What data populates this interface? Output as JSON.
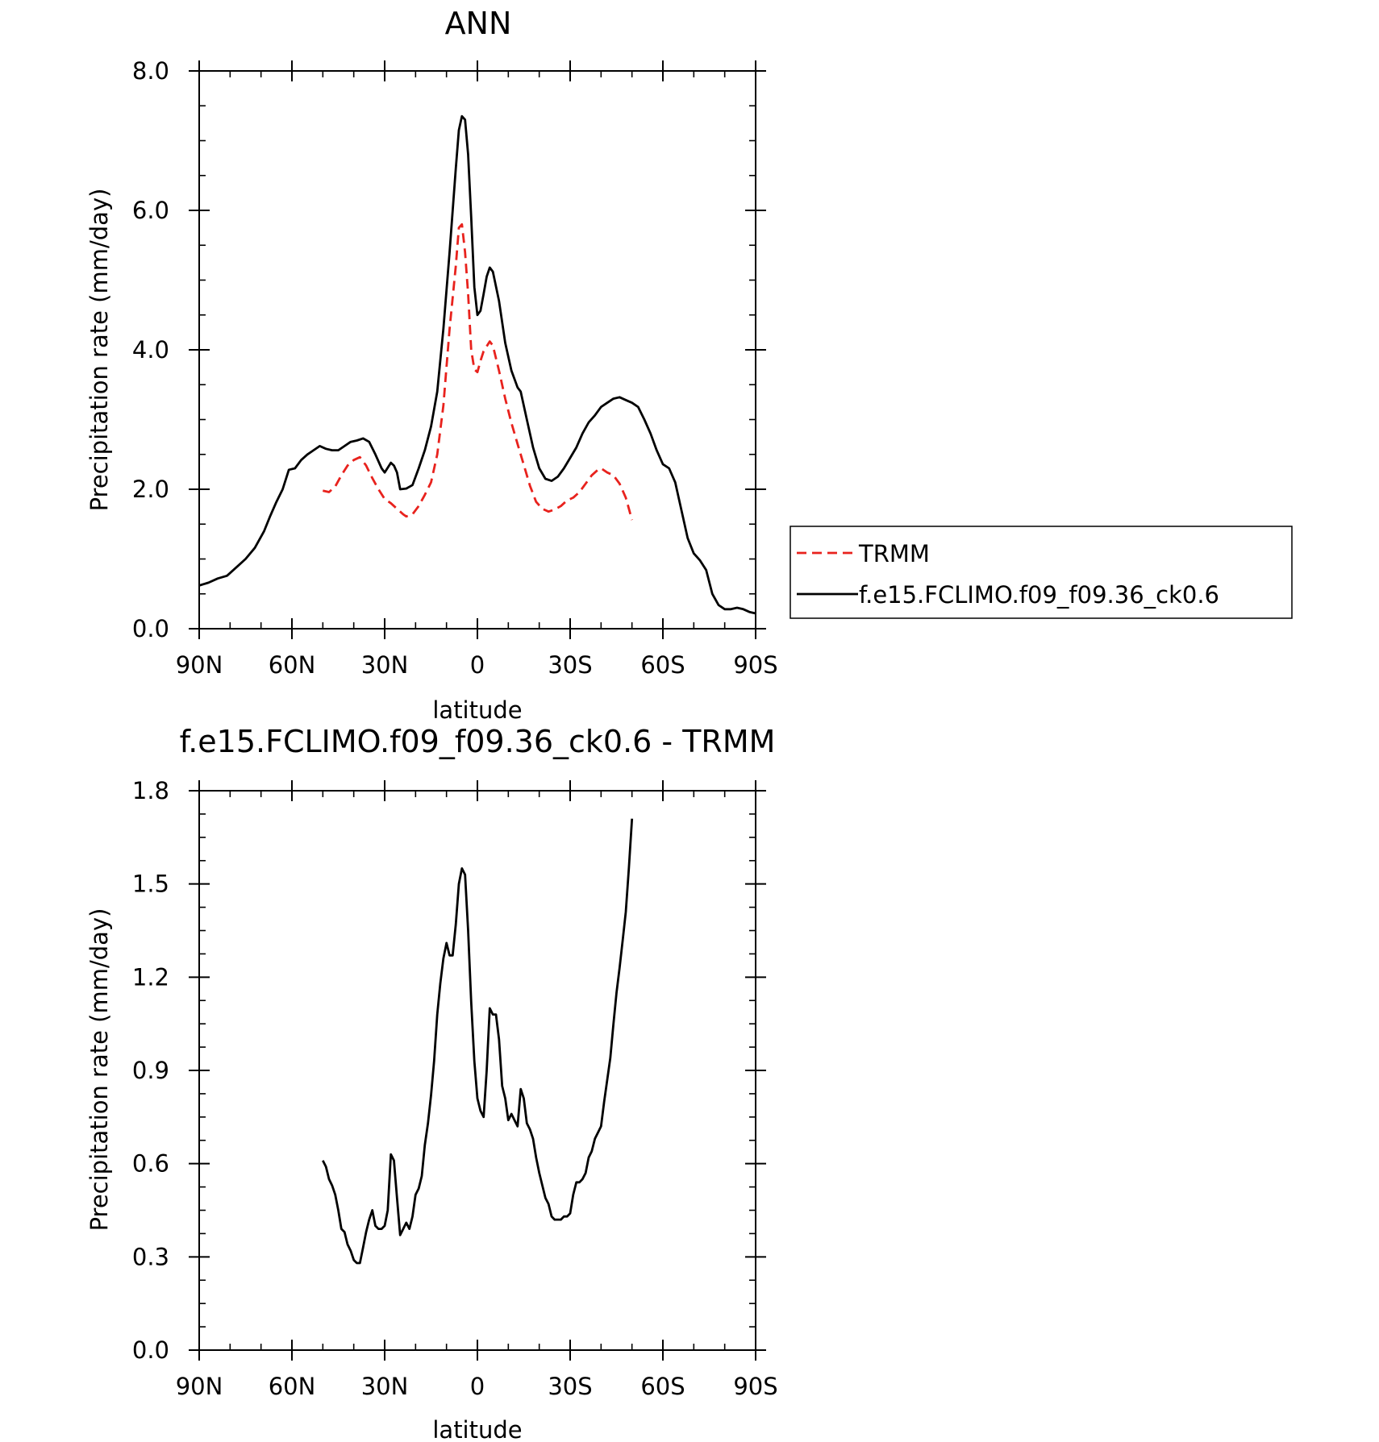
{
  "chart_data": [
    {
      "type": "line",
      "title": "ANN",
      "xlabel": "latitude",
      "ylabel": "Precipitation rate (mm/day)",
      "xlim": [
        90,
        -90
      ],
      "ylim": [
        0,
        8
      ],
      "x_ticks": [
        90,
        60,
        30,
        0,
        -30,
        -60,
        -90
      ],
      "x_tick_labels": [
        "90N",
        "60N",
        "30N",
        "0",
        "30S",
        "60S",
        "90S"
      ],
      "y_ticks": [
        0,
        2,
        4,
        6,
        8
      ],
      "y_tick_labels": [
        "0.0",
        "2.0",
        "4.0",
        "6.0",
        "8.0"
      ],
      "legend_position": "right",
      "series": [
        {
          "name": "TRMM",
          "color": "#e8221d",
          "dash": "dashed",
          "points": [
            [
              50,
              1.98
            ],
            [
              48,
              1.96
            ],
            [
              46,
              2.04
            ],
            [
              44,
              2.2
            ],
            [
              42,
              2.34
            ],
            [
              40,
              2.42
            ],
            [
              38,
              2.46
            ],
            [
              36,
              2.34
            ],
            [
              34,
              2.16
            ],
            [
              32,
              2.0
            ],
            [
              30,
              1.86
            ],
            [
              28,
              1.8
            ],
            [
              26,
              1.72
            ],
            [
              24,
              1.64
            ],
            [
              23,
              1.61
            ],
            [
              21,
              1.64
            ],
            [
              19,
              1.76
            ],
            [
              17,
              1.92
            ],
            [
              15,
              2.1
            ],
            [
              13,
              2.5
            ],
            [
              11,
              3.2
            ],
            [
              9,
              4.3
            ],
            [
              7,
              5.2
            ],
            [
              6,
              5.75
            ],
            [
              5,
              5.8
            ],
            [
              4,
              5.4
            ],
            [
              3,
              4.8
            ],
            [
              2,
              4.0
            ],
            [
              1,
              3.72
            ],
            [
              0,
              3.68
            ],
            [
              -1,
              3.84
            ],
            [
              -2,
              3.98
            ],
            [
              -3,
              4.05
            ],
            [
              -4,
              4.12
            ],
            [
              -5,
              4.06
            ],
            [
              -7,
              3.7
            ],
            [
              -9,
              3.3
            ],
            [
              -11,
              2.95
            ],
            [
              -13,
              2.65
            ],
            [
              -15,
              2.35
            ],
            [
              -17,
              2.05
            ],
            [
              -19,
              1.82
            ],
            [
              -21,
              1.72
            ],
            [
              -23,
              1.68
            ],
            [
              -25,
              1.71
            ],
            [
              -27,
              1.76
            ],
            [
              -29,
              1.84
            ],
            [
              -31,
              1.88
            ],
            [
              -33,
              1.96
            ],
            [
              -35,
              2.08
            ],
            [
              -37,
              2.2
            ],
            [
              -39,
              2.28
            ],
            [
              -40,
              2.3
            ],
            [
              -42,
              2.24
            ],
            [
              -44,
              2.2
            ],
            [
              -46,
              2.08
            ],
            [
              -48,
              1.88
            ],
            [
              -50,
              1.56
            ]
          ]
        },
        {
          "name": "f.e15.FCLIMO.f09_f09.36_ck0.6",
          "color": "#000000",
          "dash": "solid",
          "points": [
            [
              90,
              0.62
            ],
            [
              87,
              0.66
            ],
            [
              84,
              0.72
            ],
            [
              81,
              0.76
            ],
            [
              78,
              0.88
            ],
            [
              75,
              1.0
            ],
            [
              72,
              1.16
            ],
            [
              69,
              1.4
            ],
            [
              67,
              1.62
            ],
            [
              65,
              1.82
            ],
            [
              63,
              2.0
            ],
            [
              61,
              2.28
            ],
            [
              59,
              2.3
            ],
            [
              57,
              2.42
            ],
            [
              55,
              2.5
            ],
            [
              53,
              2.56
            ],
            [
              51,
              2.62
            ],
            [
              49,
              2.58
            ],
            [
              47,
              2.56
            ],
            [
              45,
              2.56
            ],
            [
              43,
              2.62
            ],
            [
              41,
              2.68
            ],
            [
              39,
              2.7
            ],
            [
              37,
              2.73
            ],
            [
              35,
              2.68
            ],
            [
              33,
              2.5
            ],
            [
              31,
              2.3
            ],
            [
              30,
              2.24
            ],
            [
              28,
              2.38
            ],
            [
              27,
              2.34
            ],
            [
              26,
              2.24
            ],
            [
              25,
              2.0
            ],
            [
              23,
              2.01
            ],
            [
              21,
              2.06
            ],
            [
              19,
              2.3
            ],
            [
              17,
              2.56
            ],
            [
              15,
              2.9
            ],
            [
              13,
              3.4
            ],
            [
              11,
              4.3
            ],
            [
              9,
              5.4
            ],
            [
              7,
              6.6
            ],
            [
              6,
              7.15
            ],
            [
              5,
              7.35
            ],
            [
              4,
              7.3
            ],
            [
              3,
              6.8
            ],
            [
              2,
              5.9
            ],
            [
              1,
              4.9
            ],
            [
              0,
              4.5
            ],
            [
              -1,
              4.56
            ],
            [
              -2,
              4.8
            ],
            [
              -3,
              5.05
            ],
            [
              -4,
              5.18
            ],
            [
              -5,
              5.12
            ],
            [
              -7,
              4.7
            ],
            [
              -9,
              4.1
            ],
            [
              -11,
              3.7
            ],
            [
              -13,
              3.46
            ],
            [
              -14,
              3.4
            ],
            [
              -16,
              3.0
            ],
            [
              -18,
              2.6
            ],
            [
              -20,
              2.3
            ],
            [
              -22,
              2.15
            ],
            [
              -24,
              2.12
            ],
            [
              -26,
              2.18
            ],
            [
              -28,
              2.3
            ],
            [
              -30,
              2.45
            ],
            [
              -32,
              2.6
            ],
            [
              -34,
              2.8
            ],
            [
              -36,
              2.96
            ],
            [
              -38,
              3.06
            ],
            [
              -40,
              3.18
            ],
            [
              -42,
              3.24
            ],
            [
              -44,
              3.3
            ],
            [
              -46,
              3.32
            ],
            [
              -48,
              3.28
            ],
            [
              -50,
              3.24
            ],
            [
              -52,
              3.18
            ],
            [
              -54,
              3.0
            ],
            [
              -56,
              2.8
            ],
            [
              -58,
              2.56
            ],
            [
              -60,
              2.36
            ],
            [
              -62,
              2.3
            ],
            [
              -64,
              2.1
            ],
            [
              -66,
              1.7
            ],
            [
              -68,
              1.3
            ],
            [
              -70,
              1.08
            ],
            [
              -72,
              0.98
            ],
            [
              -74,
              0.84
            ],
            [
              -76,
              0.5
            ],
            [
              -78,
              0.34
            ],
            [
              -80,
              0.28
            ],
            [
              -82,
              0.28
            ],
            [
              -84,
              0.3
            ],
            [
              -86,
              0.28
            ],
            [
              -88,
              0.24
            ],
            [
              -90,
              0.22
            ]
          ]
        }
      ]
    },
    {
      "type": "line",
      "title": "f.e15.FCLIMO.f09_f09.36_ck0.6 - TRMM",
      "xlabel": "latitude",
      "ylabel": "Precipitation rate (mm/day)",
      "xlim": [
        90,
        -90
      ],
      "ylim": [
        0,
        1.8
      ],
      "x_ticks": [
        90,
        60,
        30,
        0,
        -30,
        -60,
        -90
      ],
      "x_tick_labels": [
        "90N",
        "60N",
        "30N",
        "0",
        "30S",
        "60S",
        "90S"
      ],
      "y_ticks": [
        0,
        0.3,
        0.6,
        0.9,
        1.2,
        1.5,
        1.8
      ],
      "y_tick_labels": [
        "0.0",
        "0.3",
        "0.6",
        "0.9",
        "1.2",
        "1.5",
        "1.8"
      ],
      "series": [
        {
          "color": "#000000",
          "dash": "solid",
          "points": [
            [
              50,
              0.61
            ],
            [
              49,
              0.59
            ],
            [
              48,
              0.55
            ],
            [
              47,
              0.53
            ],
            [
              46,
              0.5
            ],
            [
              45,
              0.45
            ],
            [
              44,
              0.39
            ],
            [
              43,
              0.38
            ],
            [
              42,
              0.34
            ],
            [
              41,
              0.32
            ],
            [
              40,
              0.29
            ],
            [
              39,
              0.28
            ],
            [
              38,
              0.28
            ],
            [
              37,
              0.33
            ],
            [
              36,
              0.38
            ],
            [
              35,
              0.42
            ],
            [
              34,
              0.45
            ],
            [
              33,
              0.4
            ],
            [
              32,
              0.39
            ],
            [
              31,
              0.39
            ],
            [
              30,
              0.4
            ],
            [
              29,
              0.45
            ],
            [
              28,
              0.63
            ],
            [
              27,
              0.61
            ],
            [
              26,
              0.49
            ],
            [
              25,
              0.37
            ],
            [
              24,
              0.39
            ],
            [
              23,
              0.41
            ],
            [
              22,
              0.39
            ],
            [
              21,
              0.43
            ],
            [
              20,
              0.5
            ],
            [
              19,
              0.52
            ],
            [
              18,
              0.56
            ],
            [
              17,
              0.66
            ],
            [
              16,
              0.73
            ],
            [
              15,
              0.82
            ],
            [
              14,
              0.93
            ],
            [
              13,
              1.08
            ],
            [
              12,
              1.18
            ],
            [
              11,
              1.26
            ],
            [
              10,
              1.31
            ],
            [
              9,
              1.27
            ],
            [
              8,
              1.27
            ],
            [
              7,
              1.37
            ],
            [
              6,
              1.5
            ],
            [
              5,
              1.55
            ],
            [
              4,
              1.53
            ],
            [
              3,
              1.35
            ],
            [
              2,
              1.12
            ],
            [
              1,
              0.93
            ],
            [
              0,
              0.81
            ],
            [
              -1,
              0.77
            ],
            [
              -2,
              0.75
            ],
            [
              -3,
              0.9
            ],
            [
              -4,
              1.1
            ],
            [
              -5,
              1.08
            ],
            [
              -6,
              1.08
            ],
            [
              -7,
              1.0
            ],
            [
              -8,
              0.85
            ],
            [
              -9,
              0.81
            ],
            [
              -10,
              0.74
            ],
            [
              -11,
              0.76
            ],
            [
              -12,
              0.74
            ],
            [
              -13,
              0.72
            ],
            [
              -14,
              0.84
            ],
            [
              -15,
              0.81
            ],
            [
              -16,
              0.73
            ],
            [
              -17,
              0.71
            ],
            [
              -18,
              0.68
            ],
            [
              -19,
              0.62
            ],
            [
              -20,
              0.57
            ],
            [
              -21,
              0.53
            ],
            [
              -22,
              0.49
            ],
            [
              -23,
              0.47
            ],
            [
              -24,
              0.43
            ],
            [
              -25,
              0.42
            ],
            [
              -26,
              0.42
            ],
            [
              -27,
              0.42
            ],
            [
              -28,
              0.43
            ],
            [
              -29,
              0.43
            ],
            [
              -30,
              0.44
            ],
            [
              -31,
              0.5
            ],
            [
              -32,
              0.54
            ],
            [
              -33,
              0.54
            ],
            [
              -34,
              0.55
            ],
            [
              -35,
              0.57
            ],
            [
              -36,
              0.62
            ],
            [
              -37,
              0.64
            ],
            [
              -38,
              0.68
            ],
            [
              -39,
              0.7
            ],
            [
              -40,
              0.72
            ],
            [
              -41,
              0.8
            ],
            [
              -42,
              0.87
            ],
            [
              -43,
              0.94
            ],
            [
              -44,
              1.05
            ],
            [
              -45,
              1.15
            ],
            [
              -46,
              1.23
            ],
            [
              -47,
              1.32
            ],
            [
              -48,
              1.41
            ],
            [
              -49,
              1.55
            ],
            [
              -50,
              1.71
            ]
          ]
        }
      ]
    }
  ]
}
